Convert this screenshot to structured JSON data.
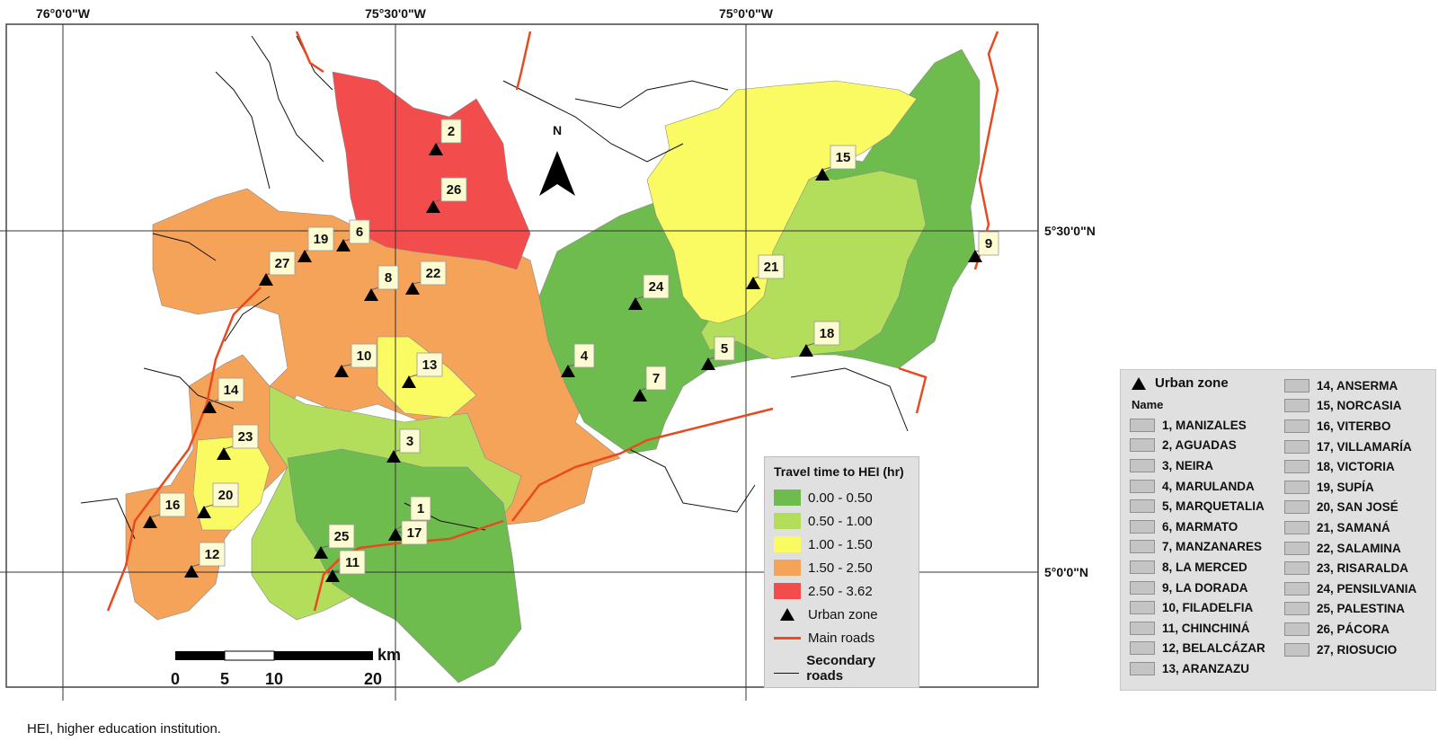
{
  "coords": {
    "lon": [
      "76°0'0\"W",
      "75°30'0\"W",
      "75°0'0\"W"
    ],
    "lat": [
      "5°30'0\"N",
      "5°0'0\"N"
    ]
  },
  "north_label": "N",
  "scale_bar": {
    "unit": "km",
    "ticks": [
      "0",
      "5",
      "10",
      "20"
    ]
  },
  "travel_legend": {
    "title": "Travel time to HEI (hr)",
    "classes": [
      {
        "label": "0.00 - 0.50",
        "color": "#6ebc4e"
      },
      {
        "label": "0.50 - 1.00",
        "color": "#b3de5c"
      },
      {
        "label": "1.00 - 1.50",
        "color": "#fafa62"
      },
      {
        "label": "1.50 - 2.50",
        "color": "#f6a35a"
      },
      {
        "label": "2.50 - 3.62",
        "color": "#f24c4c"
      }
    ],
    "urban_zone": "Urban zone",
    "main_roads": "Main roads",
    "secondary_roads": "Secondary roads"
  },
  "names_legend": {
    "urban_zone": "Urban zone",
    "header": "Name",
    "items": [
      "1, MANIZALES",
      "2, AGUADAS",
      "3, NEIRA",
      "4, MARULANDA",
      "5, MARQUETALIA",
      "6, MARMATO",
      "7, MANZANARES",
      "8, LA MERCED",
      "9, LA DORADA",
      "10, FILADELFIA",
      "11, CHINCHINÁ",
      "12, BELALCÁZAR",
      "13, ARANZAZU",
      "14, ANSERMA",
      "15, NORCASIA",
      "16, VITERBO",
      "17, VILLAMARÍA",
      "18, VICTORIA",
      "19, SUPÍA",
      "20, SAN JOSÉ",
      "21, SAMANÁ",
      "22, SALAMINA",
      "23, RISARALDA",
      "24, PENSILVANIA",
      "25, PALESTINA",
      "26, PÁCORA",
      "27, RIOSUCIO"
    ]
  },
  "urban_zones": [
    {
      "id": "1"
    },
    {
      "id": "2"
    },
    {
      "id": "3"
    },
    {
      "id": "4"
    },
    {
      "id": "5"
    },
    {
      "id": "6"
    },
    {
      "id": "7"
    },
    {
      "id": "8"
    },
    {
      "id": "9"
    },
    {
      "id": "10"
    },
    {
      "id": "11"
    },
    {
      "id": "12"
    },
    {
      "id": "13"
    },
    {
      "id": "14"
    },
    {
      "id": "15"
    },
    {
      "id": "16"
    },
    {
      "id": "17"
    },
    {
      "id": "18"
    },
    {
      "id": "19"
    },
    {
      "id": "20"
    },
    {
      "id": "21"
    },
    {
      "id": "22"
    },
    {
      "id": "23"
    },
    {
      "id": "24"
    },
    {
      "id": "25"
    },
    {
      "id": "26"
    },
    {
      "id": "27"
    }
  ],
  "caption": "HEI, higher education institution."
}
